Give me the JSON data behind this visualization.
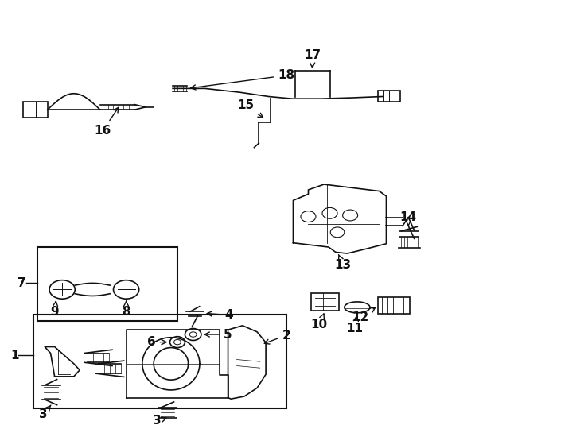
{
  "bg_color": "#ffffff",
  "line_color": "#111111",
  "lw": 1.2,
  "label_fs": 11
}
